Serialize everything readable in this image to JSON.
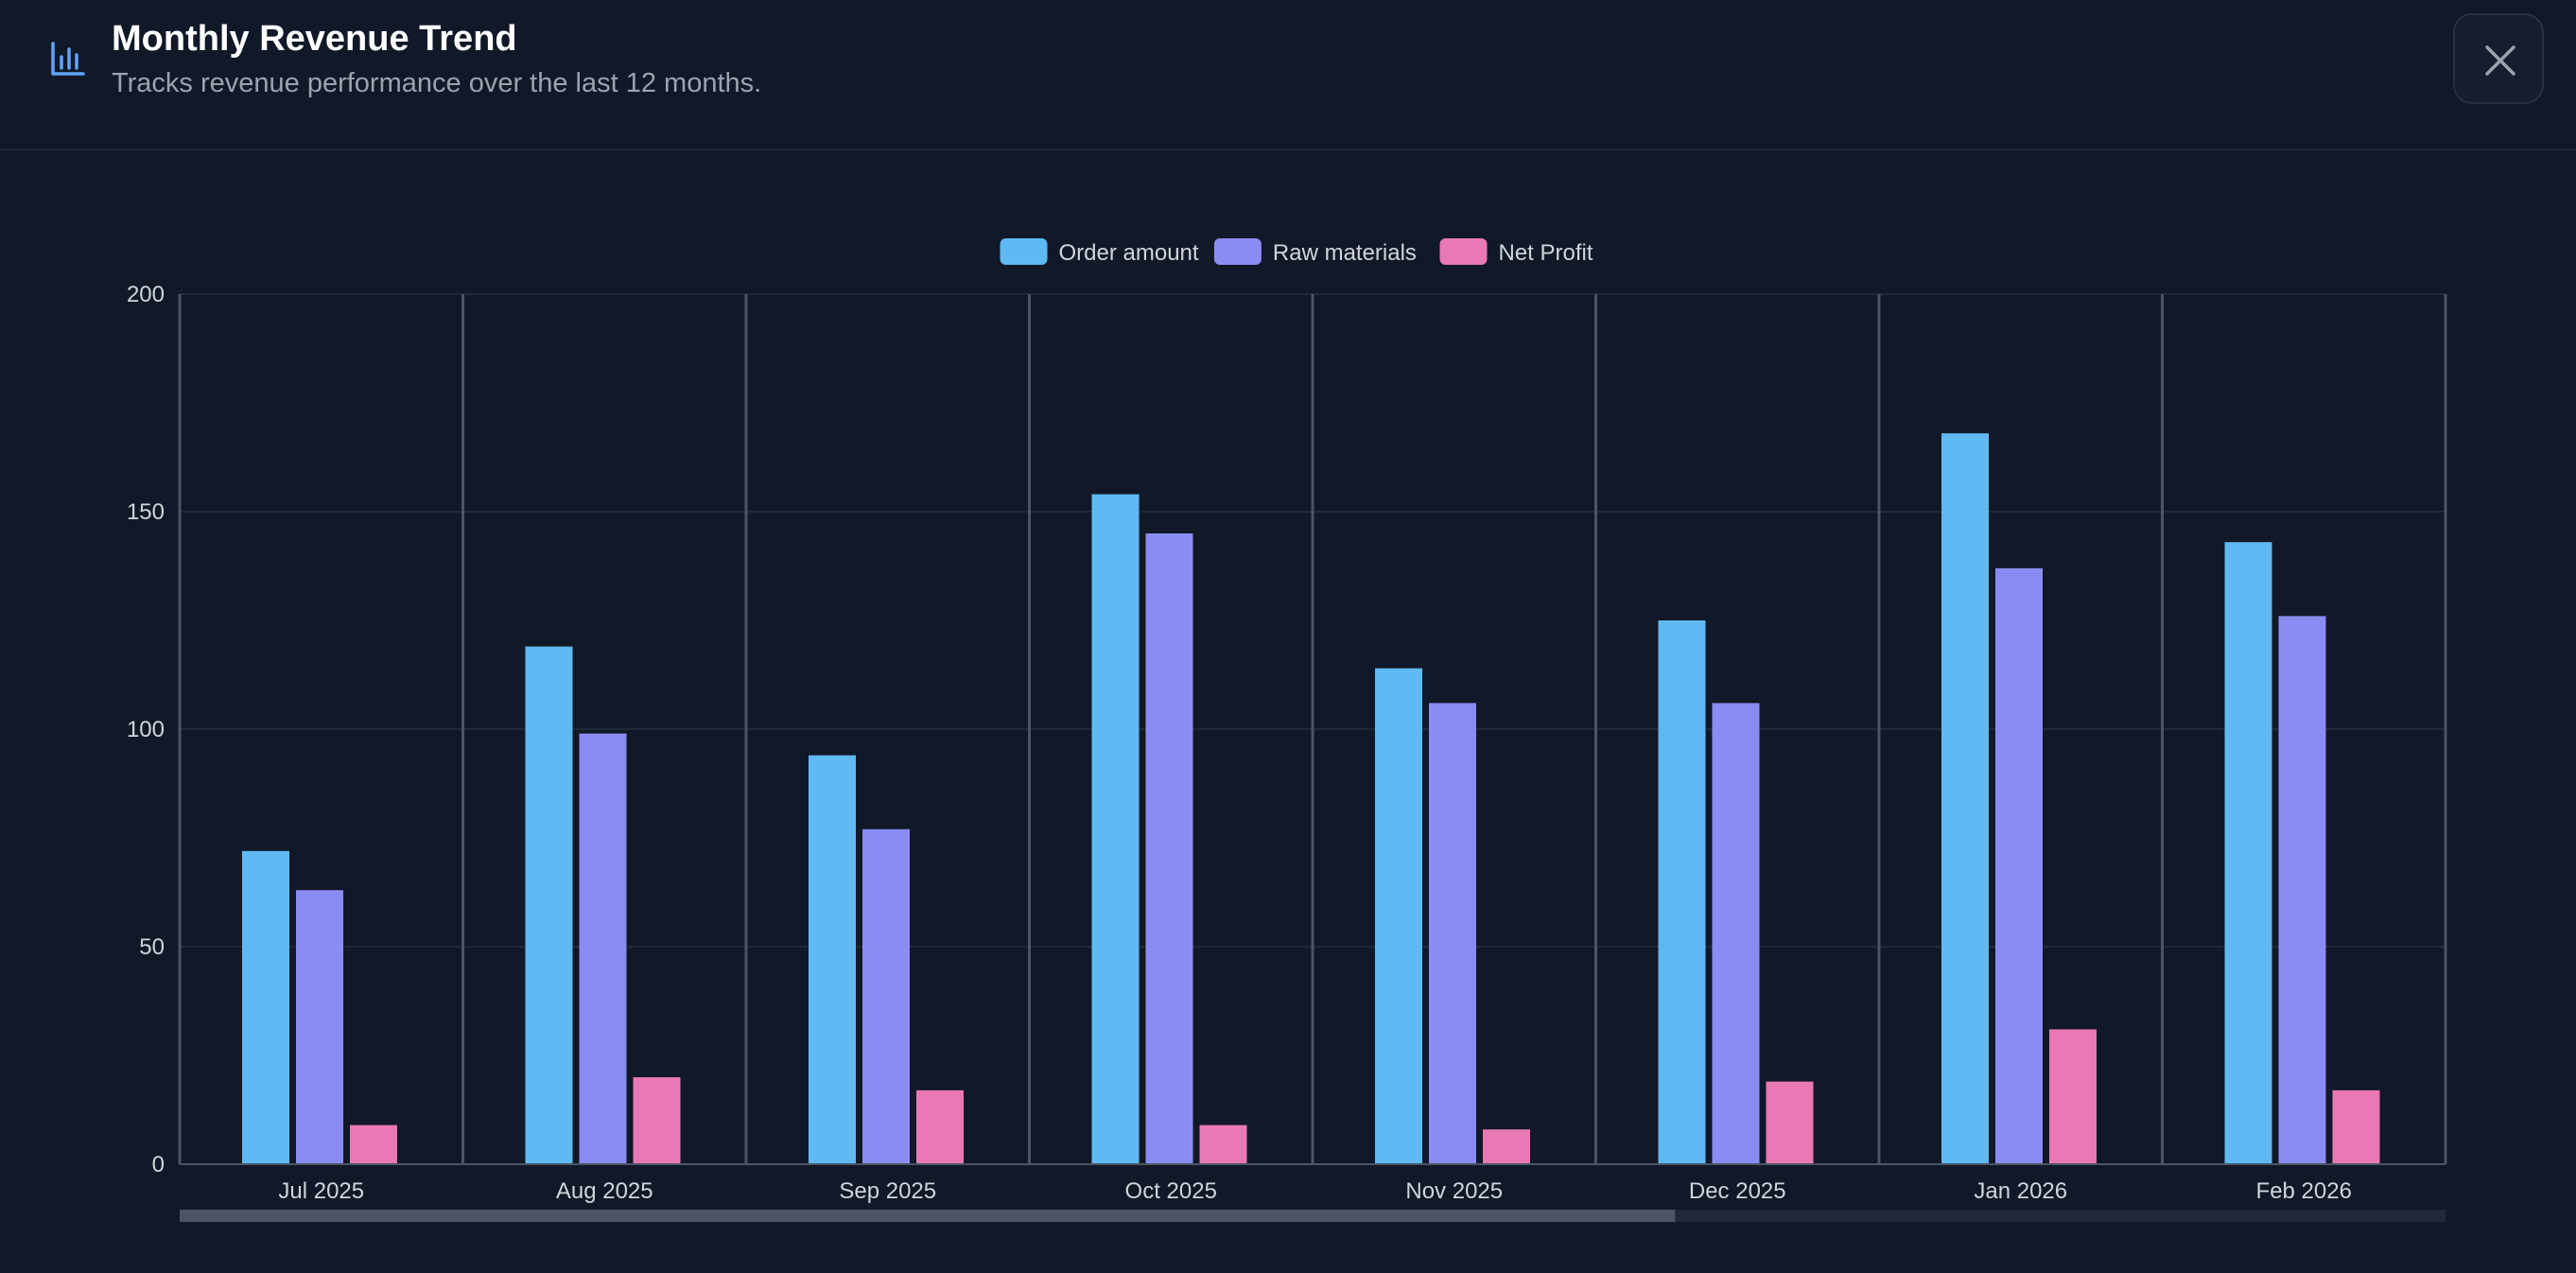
{
  "header": {
    "title": "Monthly Revenue Trend",
    "subtitle": "Tracks revenue performance over the last 12 months.",
    "icon": "bar-chart-icon",
    "close_icon": "close-icon"
  },
  "colors": {
    "background": "#111827",
    "order_amount": "#60b9f2",
    "raw_materials": "#8b8cf2",
    "net_profit": "#e879b4",
    "accent": "#60a5fa"
  },
  "chart_data": {
    "type": "bar",
    "categories": [
      "Jul 2025",
      "Aug 2025",
      "Sep 2025",
      "Oct 2025",
      "Nov 2025",
      "Dec 2025",
      "Jan 2026",
      "Feb 2026"
    ],
    "series": [
      {
        "name": "Order amount",
        "values": [
          72,
          119,
          94,
          154,
          114,
          125,
          168,
          143
        ]
      },
      {
        "name": "Raw materials",
        "values": [
          63,
          99,
          77,
          145,
          106,
          106,
          137,
          126
        ]
      },
      {
        "name": "Net Profit",
        "values": [
          9,
          20,
          17,
          9,
          8,
          19,
          31,
          17
        ]
      }
    ],
    "yticks": [
      "0",
      "50",
      "100",
      "150",
      "200"
    ],
    "ylim": [
      0,
      200
    ],
    "legend_position": "top-center",
    "grid": true,
    "scrollbar_visible_fraction": 0.66
  }
}
